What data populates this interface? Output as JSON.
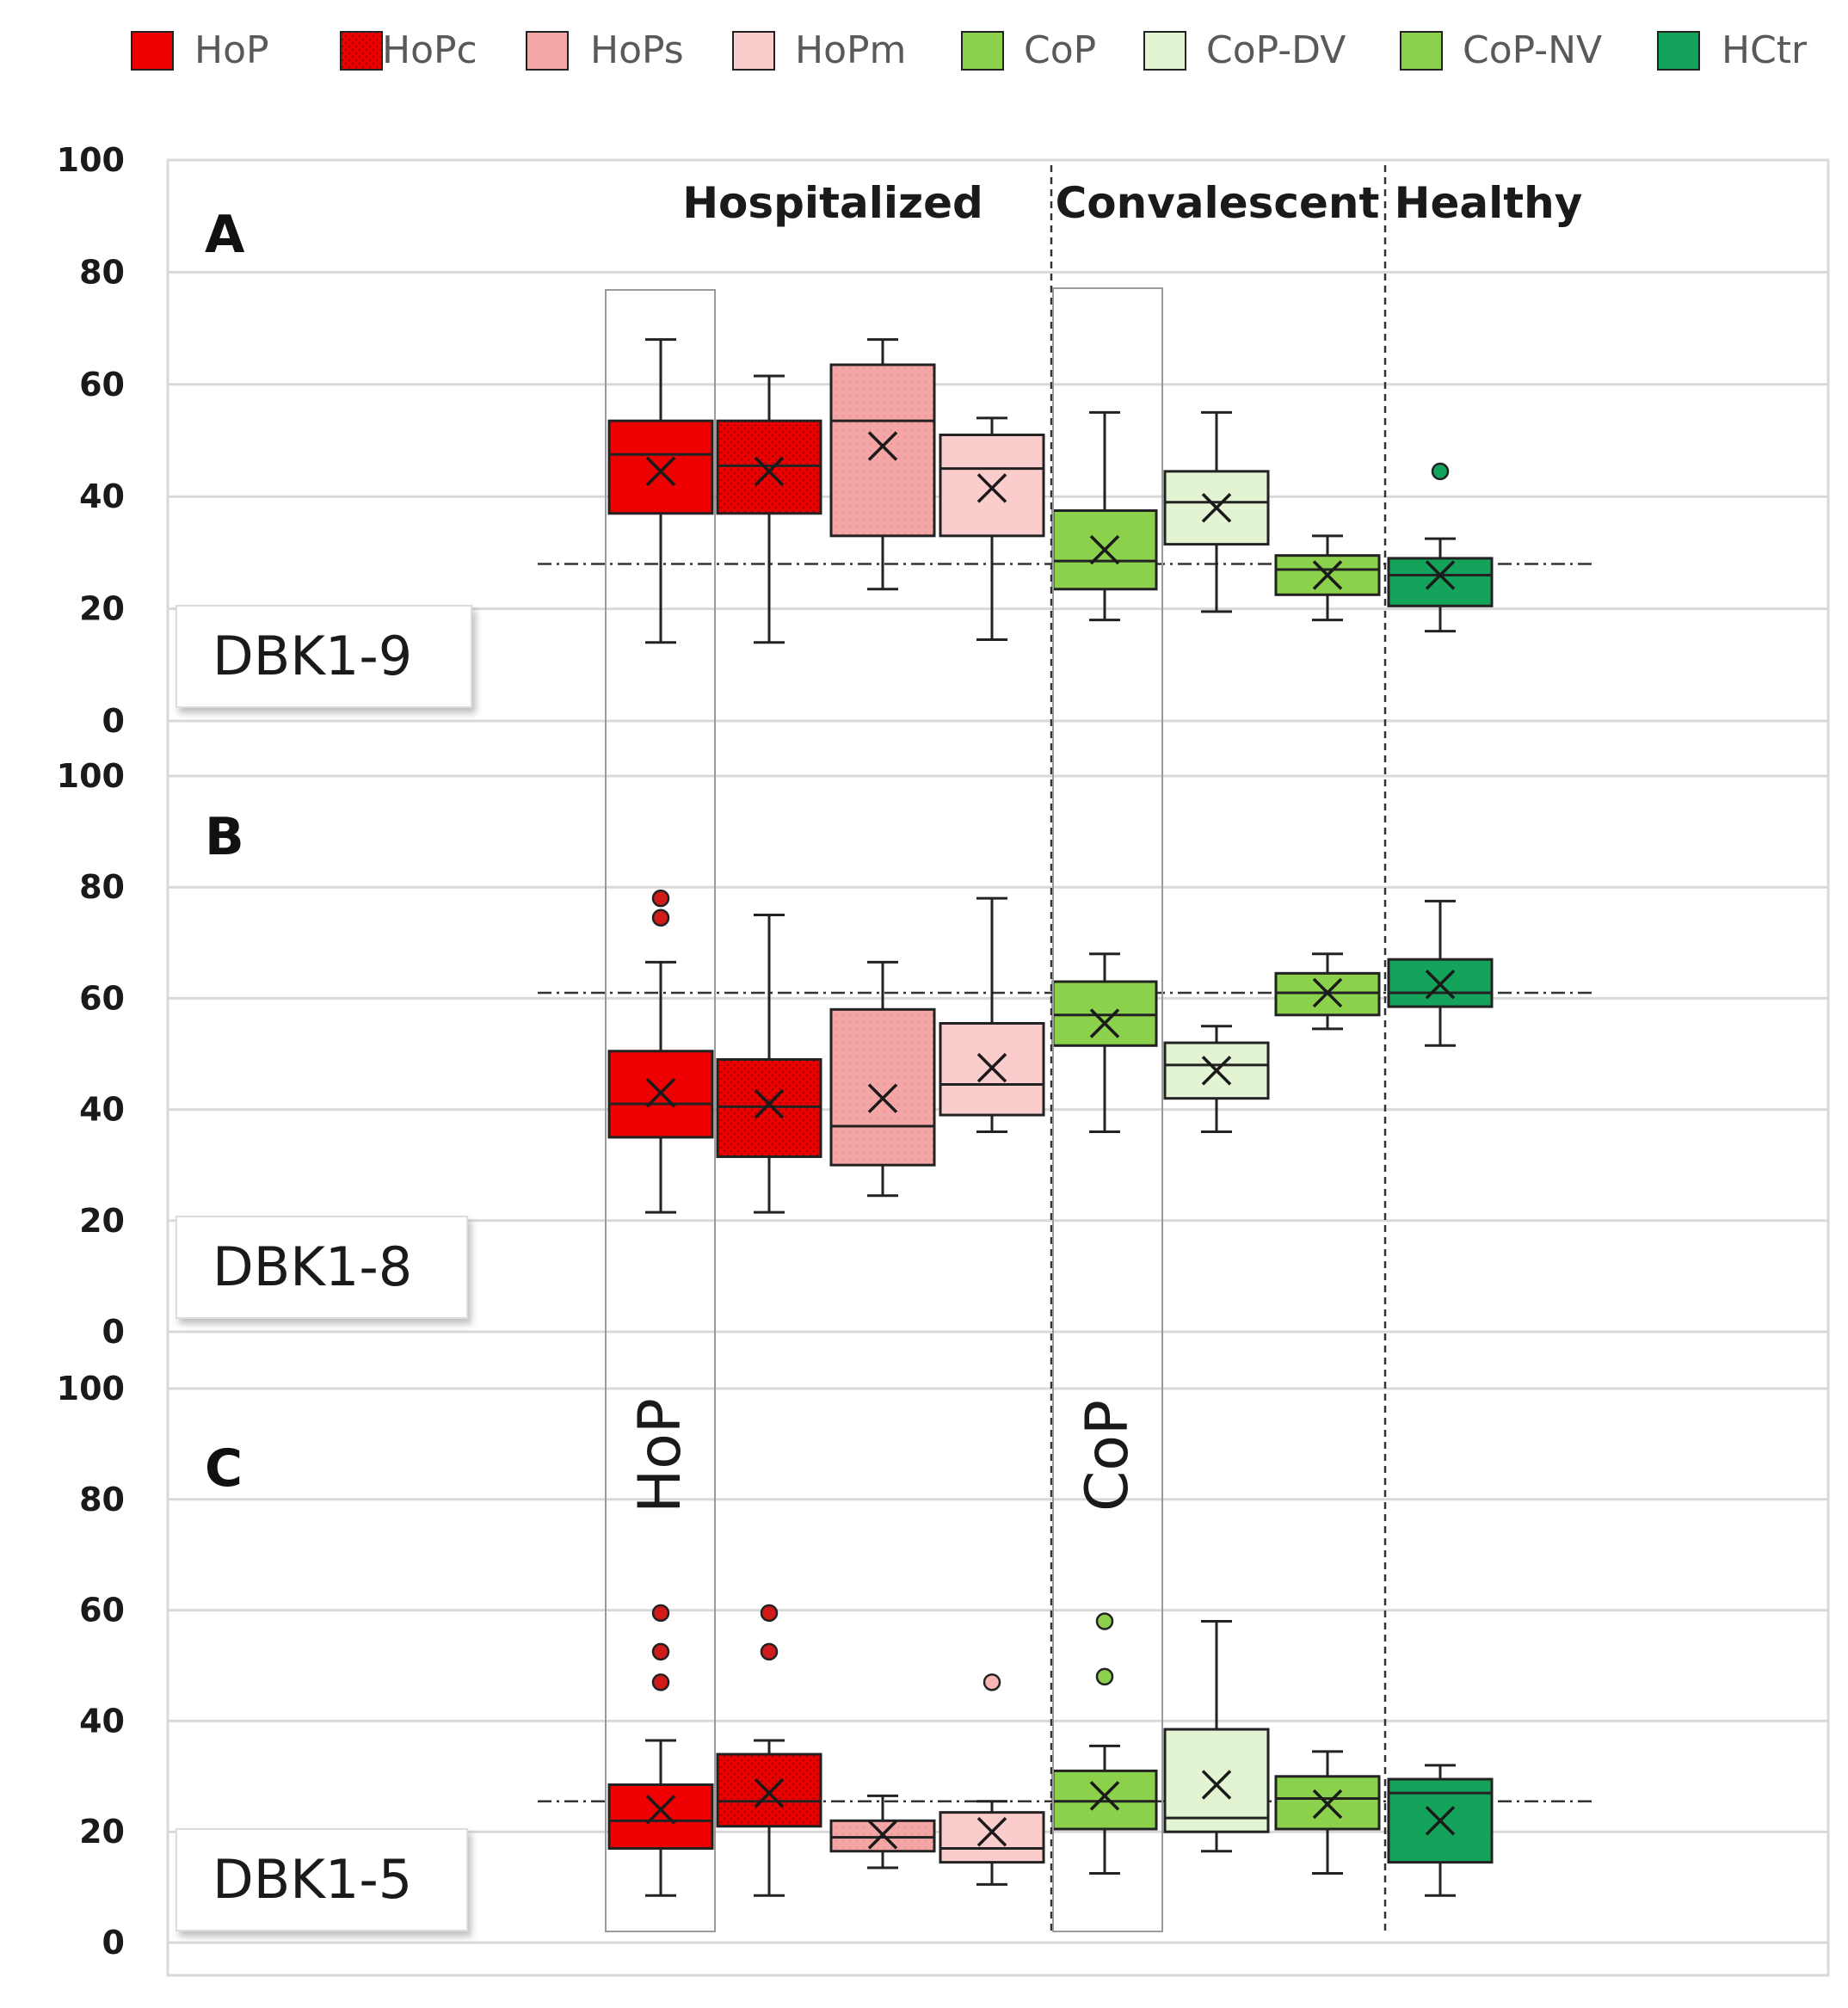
{
  "legend": [
    {
      "label": "HoP",
      "color": "#ee0000",
      "pattern": "none"
    },
    {
      "label": "HoPc",
      "color": "#ee0000",
      "pattern": "dots"
    },
    {
      "label": "HoPs",
      "color": "#f4a6a6",
      "pattern": "none"
    },
    {
      "label": "HoPm",
      "color": "#fbcccc",
      "pattern": "none"
    },
    {
      "label": "CoP",
      "color": "#8cd14c",
      "pattern": "none"
    },
    {
      "label": "CoP-DV",
      "color": "#e3f4d3",
      "pattern": "none"
    },
    {
      "label": "CoP-NV",
      "color": "#8cd14c",
      "pattern": "none"
    },
    {
      "label": "HCtr",
      "color": "#14a35b",
      "pattern": "none"
    }
  ],
  "section_labels": {
    "hospitalized": "Hospitalized",
    "convalescent": "Convalescent",
    "healthy": "Healthy"
  },
  "highlight_labels": {
    "hop": "HoP",
    "cop": "CoP"
  },
  "chart_data": [
    {
      "type": "box",
      "panel": "A",
      "title": "DBK1-9",
      "ylim": [
        0,
        100
      ],
      "yticks": [
        "0",
        "20",
        "40",
        "60",
        "80",
        "100"
      ],
      "reference_line": 28,
      "boxes": [
        {
          "group": "HoP",
          "min": 14,
          "q1": 37,
          "median": 47.5,
          "q3": 53.5,
          "max": 68,
          "mean": 44.5,
          "outliers": []
        },
        {
          "group": "HoPc",
          "min": 14,
          "q1": 37,
          "median": 45.5,
          "q3": 53.5,
          "max": 61.5,
          "mean": 44.5,
          "outliers": []
        },
        {
          "group": "HoPs",
          "min": 23.5,
          "q1": 33,
          "median": 53.5,
          "q3": 63.5,
          "max": 68,
          "mean": 49,
          "outliers": []
        },
        {
          "group": "HoPm",
          "min": 14.5,
          "q1": 33,
          "median": 45,
          "q3": 51,
          "max": 54,
          "mean": 41.5,
          "outliers": []
        },
        {
          "group": "CoP",
          "min": 18,
          "q1": 23.5,
          "median": 28.5,
          "q3": 37.5,
          "max": 55,
          "mean": 30.5,
          "outliers": []
        },
        {
          "group": "CoP-DV",
          "min": 19.5,
          "q1": 31.5,
          "median": 39,
          "q3": 44.5,
          "max": 55,
          "mean": 38,
          "outliers": []
        },
        {
          "group": "CoP-NV",
          "min": 18,
          "q1": 22.5,
          "median": 27,
          "q3": 29.5,
          "max": 33,
          "mean": 26,
          "outliers": []
        },
        {
          "group": "HCtr",
          "min": 16,
          "q1": 20.5,
          "median": 26,
          "q3": 29,
          "max": 32.5,
          "mean": 26,
          "outliers": [
            44.5
          ]
        }
      ]
    },
    {
      "type": "box",
      "panel": "B",
      "title": "DBK1-8",
      "ylim": [
        0,
        100
      ],
      "yticks": [
        "0",
        "20",
        "40",
        "60",
        "80",
        "100"
      ],
      "reference_line": 61,
      "boxes": [
        {
          "group": "HoP",
          "min": 21.5,
          "q1": 35,
          "median": 41,
          "q3": 50.5,
          "max": 66.5,
          "mean": 43,
          "outliers": [
            74.5,
            78
          ]
        },
        {
          "group": "HoPc",
          "min": 21.5,
          "q1": 31.5,
          "median": 40.5,
          "q3": 49,
          "max": 75,
          "mean": 41,
          "outliers": []
        },
        {
          "group": "HoPs",
          "min": 24.5,
          "q1": 30,
          "median": 37,
          "q3": 58,
          "max": 66.5,
          "mean": 42,
          "outliers": []
        },
        {
          "group": "HoPm",
          "min": 36,
          "q1": 39,
          "median": 44.5,
          "q3": 55.5,
          "max": 78,
          "mean": 47.5,
          "outliers": []
        },
        {
          "group": "CoP",
          "min": 36,
          "q1": 51.5,
          "median": 57,
          "q3": 63,
          "max": 68,
          "mean": 55.5,
          "outliers": []
        },
        {
          "group": "CoP-DV",
          "min": 36,
          "q1": 42,
          "median": 48,
          "q3": 52,
          "max": 55,
          "mean": 47,
          "outliers": []
        },
        {
          "group": "CoP-NV",
          "min": 54.5,
          "q1": 57,
          "median": 61,
          "q3": 64.5,
          "max": 68,
          "mean": 61,
          "outliers": []
        },
        {
          "group": "HCtr",
          "min": 51.5,
          "q1": 58.5,
          "median": 61,
          "q3": 67,
          "max": 77.5,
          "mean": 62.5,
          "outliers": []
        }
      ]
    },
    {
      "type": "box",
      "panel": "C",
      "title": "DBK1-5",
      "ylim": [
        0,
        100
      ],
      "yticks": [
        "0",
        "20",
        "40",
        "60",
        "80",
        "100"
      ],
      "reference_line": 25.5,
      "boxes": [
        {
          "group": "HoP",
          "min": 8.5,
          "q1": 17,
          "median": 22,
          "q3": 28.5,
          "max": 36.5,
          "mean": 24,
          "outliers": [
            47,
            52.5,
            59.5
          ]
        },
        {
          "group": "HoPc",
          "min": 8.5,
          "q1": 21,
          "median": 25.5,
          "q3": 34,
          "max": 36.5,
          "mean": 27,
          "outliers": [
            52.5,
            59.5
          ]
        },
        {
          "group": "HoPs",
          "min": 13.5,
          "q1": 16.5,
          "median": 19,
          "q3": 22,
          "max": 26.5,
          "mean": 19.5,
          "outliers": []
        },
        {
          "group": "HoPm",
          "min": 10.5,
          "q1": 14.5,
          "median": 17,
          "q3": 23.5,
          "max": 25.5,
          "mean": 20,
          "outliers": [
            47
          ]
        },
        {
          "group": "CoP",
          "min": 12.5,
          "q1": 20.5,
          "median": 25.5,
          "q3": 31,
          "max": 35.5,
          "mean": 26.5,
          "outliers": [
            48,
            58
          ]
        },
        {
          "group": "CoP-DV",
          "min": 16.5,
          "q1": 20,
          "median": 22.5,
          "q3": 38.5,
          "max": 58,
          "mean": 28.5,
          "outliers": []
        },
        {
          "group": "CoP-NV",
          "min": 12.5,
          "q1": 20.5,
          "median": 26,
          "q3": 30,
          "max": 34.5,
          "mean": 25,
          "outliers": []
        },
        {
          "group": "HCtr",
          "min": 8.5,
          "q1": 14.5,
          "median": 27,
          "q3": 29.5,
          "max": 32,
          "mean": 22,
          "outliers": []
        }
      ]
    }
  ]
}
